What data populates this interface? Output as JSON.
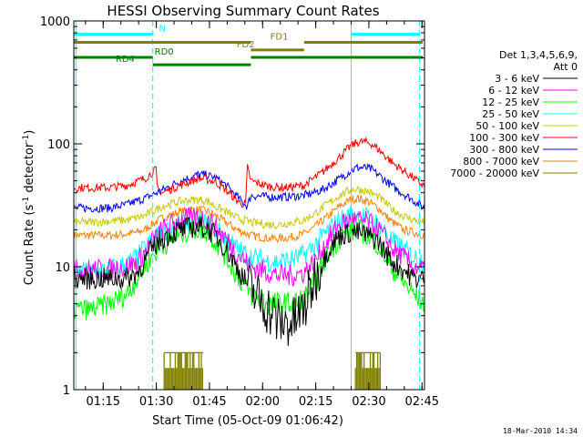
{
  "chart_data": {
    "type": "line",
    "title": "HESSI Observing Summary Count Rates",
    "xlabel": "Start Time (05-Oct-09 01:06:42)",
    "ylabel_prefix": "Count Rate (s",
    "ylabel_sup1": "-1",
    "ylabel_mid": " detector",
    "ylabel_sup2": "-1",
    "ylabel_suffix": ")",
    "x_range_minutes": [
      0,
      99
    ],
    "x_start_clock": "01:06:42",
    "x_ticks": [
      {
        "label": "01:15",
        "minute": 8.3
      },
      {
        "label": "01:30",
        "minute": 23.3
      },
      {
        "label": "01:45",
        "minute": 38.3
      },
      {
        "label": "02:00",
        "minute": 53.3
      },
      {
        "label": "02:15",
        "minute": 68.3
      },
      {
        "label": "02:30",
        "minute": 83.3
      },
      {
        "label": "02:45",
        "minute": 98.3
      }
    ],
    "y_scale": "log",
    "ylim": [
      1,
      1000
    ],
    "y_ticks": [
      {
        "label": "1",
        "value": 1
      },
      {
        "label": "10",
        "value": 10
      },
      {
        "label": "100",
        "value": 100
      },
      {
        "label": "1000",
        "value": 1000
      }
    ],
    "legend_header": [
      "Det 1,3,4,5,6,9,",
      "Att 0"
    ],
    "legend_position": "right",
    "series": [
      {
        "name": "3 - 6 keV",
        "color": "#000000",
        "x": [
          0,
          5,
          10,
          15,
          18,
          20,
          22,
          25,
          30,
          33,
          36,
          38,
          40,
          43,
          46,
          50,
          55,
          58,
          62,
          65,
          68,
          72,
          75,
          78,
          80,
          83,
          86,
          88,
          90,
          93,
          96,
          99
        ],
        "y": [
          8,
          8,
          8,
          8,
          9,
          11,
          14,
          17,
          20,
          21,
          21,
          20,
          18,
          14,
          10,
          6.5,
          4.5,
          3.5,
          3.5,
          4.5,
          8,
          14,
          18,
          19,
          19,
          18,
          16,
          13,
          11,
          9.5,
          8,
          8
        ]
      },
      {
        "name": "6 - 12 keV",
        "color": "#ff00ff",
        "x": [
          0,
          5,
          10,
          15,
          18,
          20,
          22,
          25,
          30,
          33,
          36,
          38,
          40,
          43,
          46,
          50,
          55,
          58,
          62,
          65,
          68,
          72,
          75,
          78,
          80,
          83,
          86,
          88,
          90,
          93,
          96,
          99
        ],
        "y": [
          9.5,
          9.5,
          9.5,
          10,
          11,
          13,
          16,
          20,
          24,
          25,
          25,
          24,
          21,
          17,
          13,
          10,
          9,
          8.5,
          8.5,
          9,
          11,
          17,
          22,
          24,
          24,
          23,
          20,
          17,
          14,
          12,
          10,
          9.5
        ]
      },
      {
        "name": "12 - 25 keV",
        "color": "#00ff00",
        "x": [
          0,
          5,
          10,
          15,
          18,
          20,
          22,
          25,
          30,
          33,
          36,
          38,
          40,
          43,
          46,
          50,
          55,
          58,
          62,
          65,
          68,
          72,
          75,
          78,
          80,
          83,
          86,
          88,
          90,
          93,
          96,
          99
        ],
        "y": [
          4.5,
          4.5,
          5,
          6,
          8,
          10,
          12,
          15,
          18,
          20,
          20,
          19,
          16,
          12,
          8.5,
          6,
          5,
          5,
          5,
          5.5,
          7.5,
          13,
          17,
          19,
          20,
          18,
          15,
          12,
          9.5,
          7.5,
          6,
          5
        ]
      },
      {
        "name": "25 - 50 keV",
        "color": "#00ffff",
        "x": [
          0,
          5,
          10,
          15,
          18,
          20,
          22,
          25,
          30,
          33,
          36,
          38,
          40,
          43,
          46,
          50,
          55,
          58,
          62,
          65,
          68,
          72,
          75,
          78,
          80,
          83,
          86,
          88,
          90,
          93,
          96,
          99
        ],
        "y": [
          9,
          9,
          9.5,
          10.5,
          12,
          14,
          16,
          19,
          22,
          23,
          23,
          22,
          20,
          17,
          14,
          12,
          11,
          11,
          11.5,
          12.5,
          15,
          20,
          24,
          26,
          26,
          25,
          22,
          19,
          16,
          14,
          12,
          11
        ]
      },
      {
        "name": "50 - 100 keV",
        "color": "#c8c800",
        "x": [
          0,
          5,
          10,
          15,
          18,
          20,
          22,
          25,
          30,
          33,
          36,
          38,
          40,
          43,
          46,
          50,
          55,
          58,
          62,
          65,
          68,
          72,
          75,
          78,
          80,
          83,
          86,
          88,
          90,
          93,
          96,
          99
        ],
        "y": [
          23,
          23,
          23.5,
          24,
          25,
          26,
          28,
          31,
          34,
          35,
          35,
          34,
          31,
          28,
          25,
          23,
          22,
          22,
          23,
          24,
          27,
          33,
          38,
          42,
          43,
          41,
          37,
          33,
          29,
          26,
          24,
          23
        ]
      },
      {
        "name": "100 - 300 keV",
        "color": "#ff0000",
        "x": [
          0,
          5,
          10,
          15,
          20,
          22,
          23.3,
          23.5,
          25,
          30,
          35,
          37,
          40,
          43,
          45,
          47,
          48.5,
          49,
          50,
          55,
          60,
          65,
          70,
          75,
          78,
          80,
          82,
          84,
          86,
          90,
          95,
          99
        ],
        "y": [
          44,
          44,
          44,
          46,
          52,
          58,
          62,
          44,
          40,
          46,
          52,
          52,
          49,
          42,
          37,
          33,
          32,
          64,
          50,
          45,
          44,
          46,
          58,
          78,
          95,
          103,
          104,
          100,
          90,
          70,
          55,
          45
        ]
      },
      {
        "name": "300 - 800 keV",
        "color": "#0000ff",
        "x": [
          0,
          5,
          10,
          15,
          20,
          25,
          30,
          35,
          37,
          40,
          43,
          45,
          47,
          49,
          50,
          55,
          60,
          65,
          70,
          75,
          78,
          80,
          82,
          84,
          86,
          90,
          95,
          99
        ],
        "y": [
          30,
          30,
          30,
          32,
          36,
          42,
          50,
          56,
          56,
          53,
          46,
          40,
          35,
          31,
          38,
          37,
          37,
          38,
          42,
          52,
          60,
          64,
          64,
          62,
          56,
          45,
          36,
          30
        ]
      },
      {
        "name": "800 - 7000 keV",
        "color": "#ff8000",
        "x": [
          0,
          5,
          10,
          15,
          18,
          20,
          22,
          25,
          30,
          33,
          36,
          38,
          40,
          43,
          46,
          50,
          55,
          58,
          62,
          65,
          68,
          72,
          75,
          78,
          80,
          83,
          86,
          88,
          90,
          93,
          96,
          99
        ],
        "y": [
          18,
          18,
          18,
          18.5,
          19,
          20,
          22,
          25,
          28,
          29,
          29,
          28,
          26,
          23,
          20,
          18,
          17,
          17,
          17.5,
          18.5,
          21,
          26,
          31,
          35,
          36,
          34,
          30,
          26,
          23,
          20,
          19,
          18
        ]
      },
      {
        "name": "7000 - 20000 keV",
        "color": "#808000",
        "burst_bottom": 1,
        "burst_top": 2,
        "bursts": [
          [
            25.5,
            36.5
          ],
          [
            79.5,
            86.5
          ]
        ]
      }
    ],
    "vertical_lines": [
      {
        "minute": 0.6,
        "style": "solid",
        "color": "#00ffff"
      },
      {
        "minute": 22.3,
        "style": "dashed",
        "color": "#00ffff"
      },
      {
        "minute": 78.3,
        "style": "solid",
        "color": "#00ffff"
      },
      {
        "minute": 97.6,
        "style": "dashed",
        "color": "#00ffff"
      }
    ],
    "state_bars": [
      {
        "label": "N",
        "color": "#00ffff",
        "level": 780,
        "segments": [
          [
            0,
            22.3
          ],
          [
            78.3,
            97.6
          ]
        ],
        "label_minute": 25
      },
      {
        "label": "FD1",
        "color": "#808000",
        "level": 670,
        "segments": [
          [
            0,
            50
          ],
          [
            65,
            98.5
          ]
        ],
        "label_minute": 58
      },
      {
        "label": "FD2",
        "color": "#808000",
        "level": 580,
        "segments": [
          [
            50,
            65
          ]
        ],
        "label_minute": 48.5
      },
      {
        "label": "RD0",
        "color": "#008000",
        "level": 505,
        "segments": [
          [
            0,
            22.3
          ],
          [
            50,
            98.5
          ]
        ],
        "label_minute": 25.5
      },
      {
        "label": "RD4",
        "color": "#008000",
        "level": 440,
        "segments": [
          [
            22.3,
            50
          ]
        ],
        "label_minute": 14.5
      }
    ]
  },
  "footer_timestamp": "18-Mar-2010 14:34"
}
